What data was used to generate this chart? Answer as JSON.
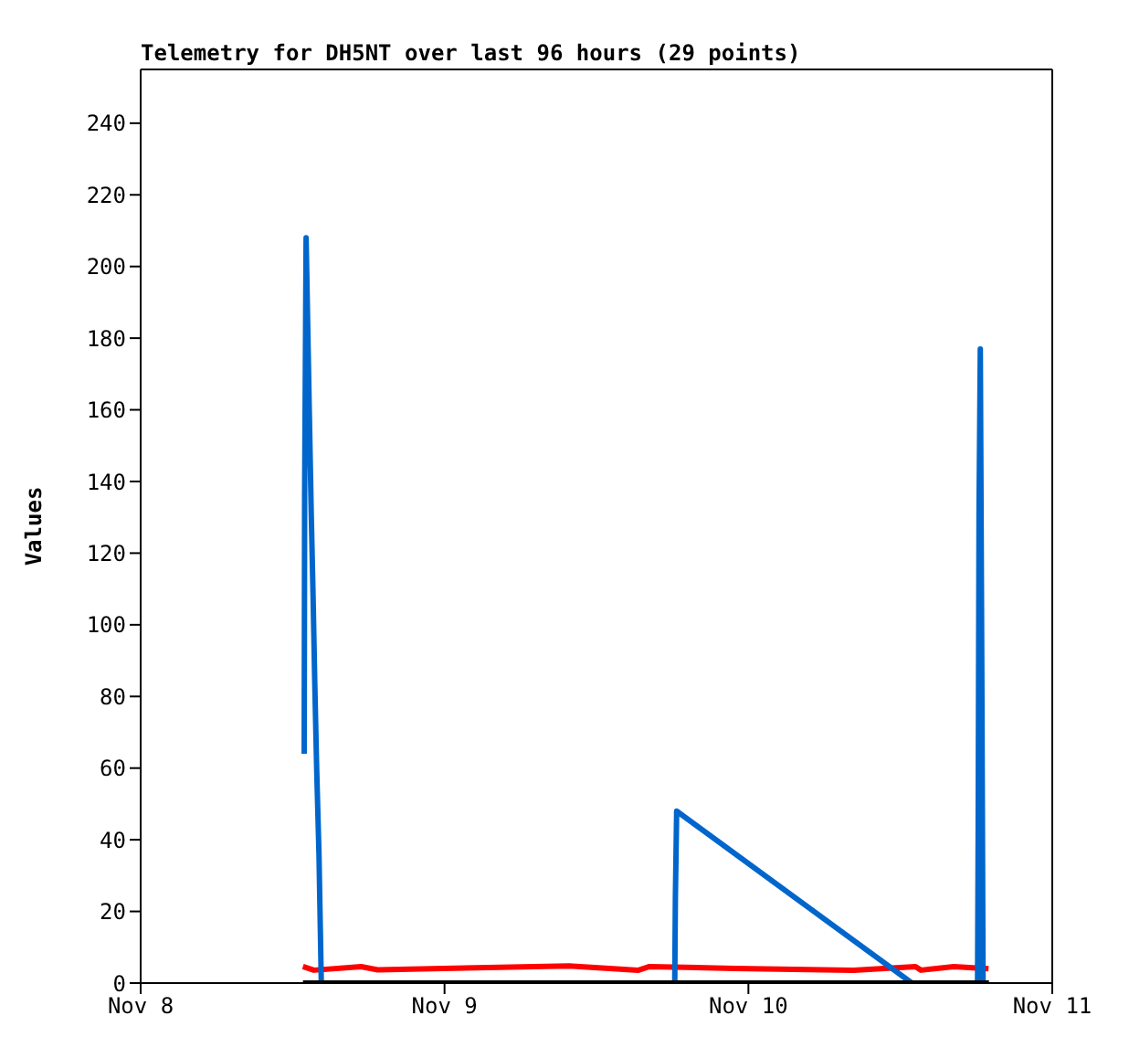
{
  "chart_data": {
    "type": "line",
    "title": "Telemetry for DH5NT over last 96 hours (29 points)",
    "ylabel": "Values",
    "xlim": [
      "--11-08",
      "--11-11"
    ],
    "xticks": [
      {
        "value": "--11-08",
        "label": "Nov 8"
      },
      {
        "value": "--11-09",
        "label": "Nov 9"
      },
      {
        "value": "--11-10",
        "label": "Nov 10"
      },
      {
        "value": "--11-11",
        "label": "Nov 11"
      }
    ],
    "ylim": [
      0,
      255
    ],
    "yticks": [
      0,
      20,
      40,
      60,
      80,
      100,
      120,
      140,
      160,
      180,
      200,
      220,
      240
    ],
    "marker": "none",
    "line_style": "solid",
    "series": [
      {
        "color": "#ff0000",
        "x": [
          "--11-08T12:49",
          "--11-08T13:41",
          "--11-08T17:25",
          "--11-08T18:43",
          "--11-08T23:54",
          "--11-09T09:50",
          "--11-09T15:19",
          "--11-09T16:11",
          "--11-09T22:56",
          "--11-10T08:18",
          "--11-10T13:12",
          "--11-10T13:38",
          "--11-10T16:13",
          "--11-10T18:58"
        ],
        "values": [
          4.6,
          3.6,
          4.6,
          3.7,
          4.1,
          4.8,
          3.6,
          4.6,
          4.1,
          3.6,
          4.6,
          3.6,
          4.6,
          4.0
        ]
      },
      {
        "color": "#0066cc",
        "x": [
          "--11-08T12:55",
          "--11-08T12:57",
          "--11-08T13:04",
          "--11-08T13:09",
          "--11-08T13:19",
          "--11-08T13:28",
          "--11-08T13:37",
          "--11-08T13:45",
          "--11-08T13:54",
          "--11-08T14:05",
          "--11-08T14:12",
          "--11-08T14:16",
          "--11-09T18:11",
          "--11-09T18:14",
          "--11-09T18:20",
          "--11-10T12:55",
          "--11-10T18:06",
          "--11-10T18:09",
          "--11-10T18:13",
          "--11-10T18:19",
          "--11-10T18:26",
          "--11-10T18:32"
        ],
        "values": [
          64,
          136,
          208,
          192,
          160,
          132,
          108,
          84,
          60,
          36,
          13,
          0,
          0,
          24,
          48,
          0,
          0,
          44,
          132,
          177,
          88,
          0
        ]
      },
      {
        "color": "#000000",
        "x": [
          "--11-08T12:49",
          "--11-10T19:00"
        ],
        "values": [
          0,
          0
        ]
      }
    ]
  }
}
